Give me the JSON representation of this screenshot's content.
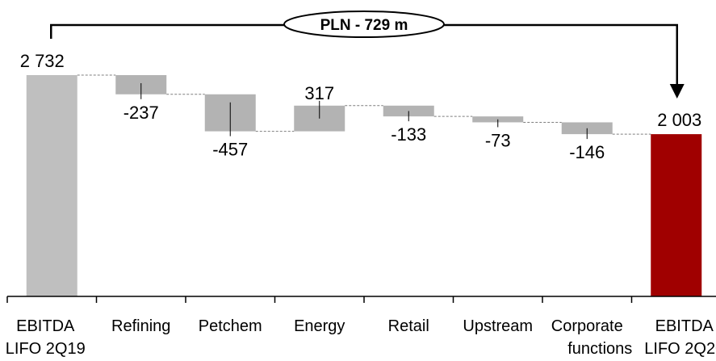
{
  "chart_data": {
    "type": "waterfall",
    "title": "",
    "xlabel": "",
    "ylabel": "",
    "categories": [
      [
        "EBITDA",
        "LIFO 2Q19"
      ],
      [
        "Refining"
      ],
      [
        "Petchem"
      ],
      [
        "Energy"
      ],
      [
        "Retail"
      ],
      [
        "Upstream"
      ],
      [
        "Corporate",
        "functions"
      ],
      [
        "EBITDA",
        "LIFO 2Q20"
      ]
    ],
    "values": [
      2732,
      -237,
      -457,
      317,
      -133,
      -73,
      -146,
      2003
    ],
    "value_labels": [
      "2 732",
      "-237",
      "-457",
      "317",
      "-133",
      "-73",
      "-146",
      "2 003"
    ],
    "bar_kinds": [
      "total",
      "delta",
      "delta",
      "delta",
      "delta",
      "delta",
      "delta",
      "total"
    ],
    "ylim": [
      0,
      2900
    ],
    "grid": false,
    "legend": "none",
    "annotation": {
      "text": "PLN - 729 m",
      "from_category": 0,
      "to_category": 7
    },
    "colors": {
      "start_total": "#bfbfbf",
      "delta": "#b3b3b3",
      "end_total": "#a00000",
      "connector": "#7f7f7f",
      "text": "#000000"
    }
  }
}
